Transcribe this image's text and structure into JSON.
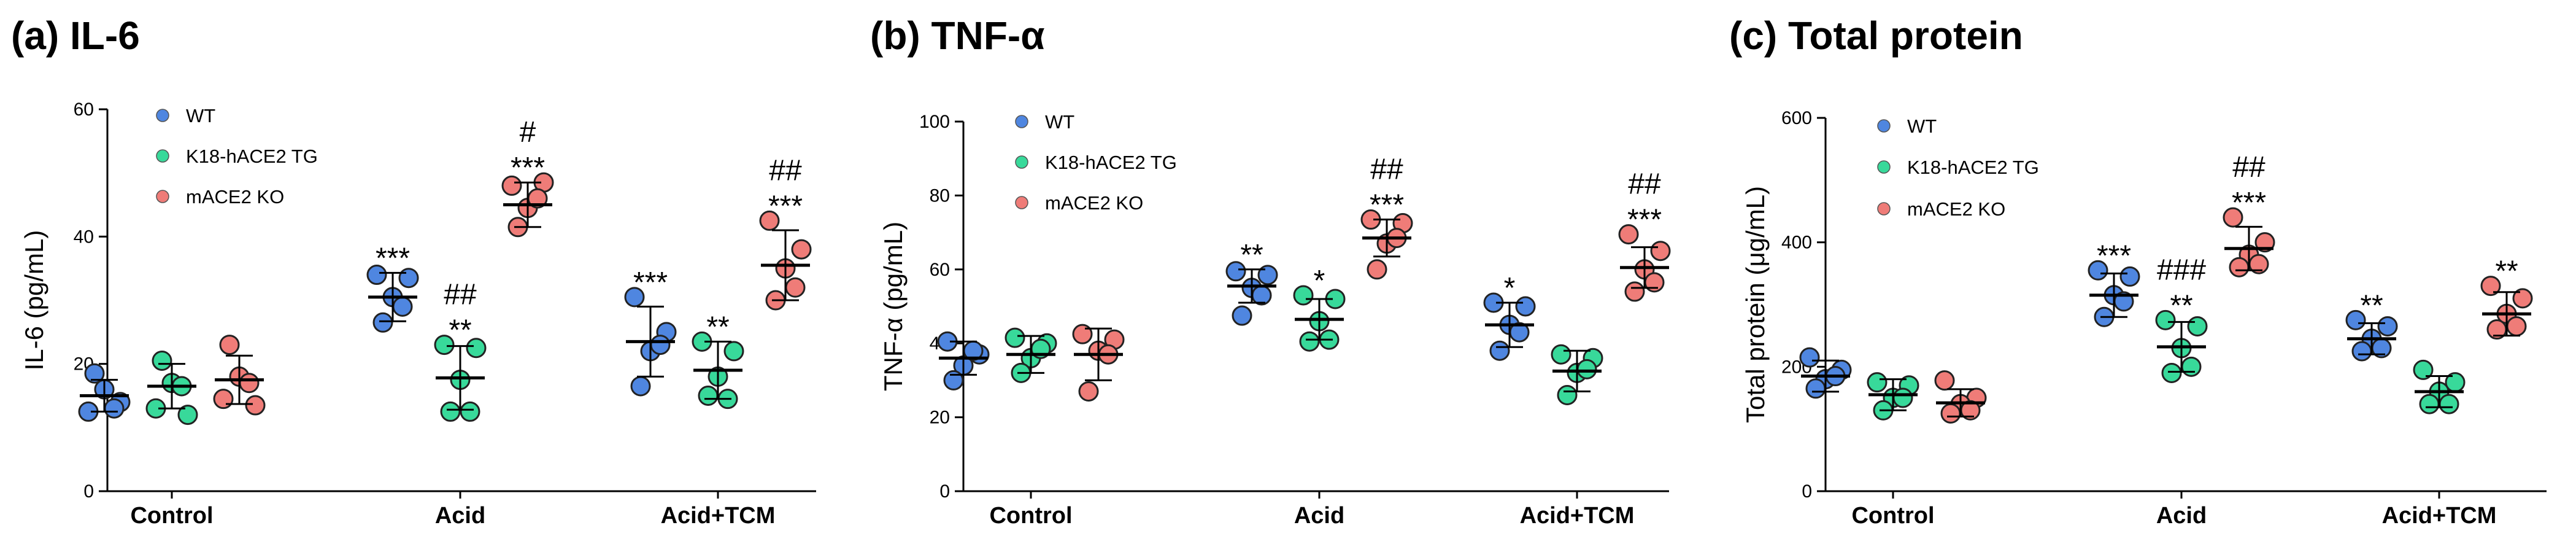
{
  "colors": {
    "WT": "#4f86e0",
    "K18-hACE2 TG": "#38d99a",
    "mACE2 KO": "#ef7c78"
  },
  "chart_data": [
    {
      "type": "scatter",
      "title": "(a) IL-6",
      "ylabel": "IL-6 (pg/mL)",
      "ylim": [
        0,
        60
      ],
      "yticks": [
        "0",
        "20",
        "40",
        "60"
      ],
      "categories": [
        "Control",
        "Acid",
        "Acid+TCM"
      ],
      "legend": [
        "WT",
        "K18-hACE2 TG",
        "mACE2 KO"
      ],
      "groups": [
        {
          "category": "Control",
          "series": "WT",
          "mean": 15.0,
          "sd": 2.5,
          "points": [
            12.5,
            14.0,
            16.0,
            18.5,
            13.0
          ],
          "sig": []
        },
        {
          "category": "Control",
          "series": "K18-hACE2 TG",
          "mean": 16.5,
          "sd": 3.5,
          "points": [
            13.0,
            12.0,
            17.0,
            20.5,
            16.5
          ],
          "sig": []
        },
        {
          "category": "Control",
          "series": "mACE2 KO",
          "mean": 17.5,
          "sd": 3.8,
          "points": [
            14.5,
            13.5,
            18.0,
            23.0,
            17.0
          ],
          "sig": []
        },
        {
          "category": "Acid",
          "series": "WT",
          "mean": 30.5,
          "sd": 3.8,
          "points": [
            34.0,
            33.5,
            30.5,
            26.5,
            29.0
          ],
          "sig": [
            "***"
          ]
        },
        {
          "category": "Acid",
          "series": "K18-hACE2 TG",
          "mean": 17.8,
          "sd": 5.0,
          "points": [
            23.0,
            22.5,
            17.5,
            12.5,
            12.5
          ],
          "sig": [
            "##",
            "**"
          ]
        },
        {
          "category": "Acid",
          "series": "mACE2 KO",
          "mean": 45.0,
          "sd": 3.5,
          "points": [
            48.0,
            48.5,
            44.5,
            41.5,
            46.0
          ],
          "sig": [
            "#",
            "***"
          ]
        },
        {
          "category": "Acid+TCM",
          "series": "WT",
          "mean": 23.5,
          "sd": 5.5,
          "points": [
            30.5,
            25.0,
            22.0,
            16.5,
            23.0
          ],
          "sig": [
            "***"
          ]
        },
        {
          "category": "Acid+TCM",
          "series": "K18-hACE2 TG",
          "mean": 19.0,
          "sd": 4.5,
          "points": [
            23.5,
            22.0,
            18.0,
            15.0,
            14.5
          ],
          "sig": [
            "**"
          ]
        },
        {
          "category": "Acid+TCM",
          "series": "mACE2 KO",
          "mean": 35.5,
          "sd": 5.5,
          "points": [
            42.5,
            38.0,
            35.0,
            30.0,
            32.0
          ],
          "sig": [
            "##",
            "***"
          ]
        }
      ]
    },
    {
      "type": "scatter",
      "title": "(b) TNF-α",
      "ylabel": "TNF-α (pg/mL)",
      "ylim": [
        0,
        100
      ],
      "yticks": [
        "0",
        "20",
        "40",
        "60",
        "80",
        "100"
      ],
      "categories": [
        "Control",
        "Acid",
        "Acid+TCM"
      ],
      "legend": [
        "WT",
        "K18-hACE2 TG",
        "mACE2 KO"
      ],
      "groups": [
        {
          "category": "Control",
          "series": "WT",
          "mean": 36.0,
          "sd": 4.5,
          "points": [
            40.5,
            37.0,
            34.0,
            30.0,
            38.0
          ],
          "sig": []
        },
        {
          "category": "Control",
          "series": "K18-hACE2 TG",
          "mean": 37.0,
          "sd": 5.0,
          "points": [
            41.5,
            40.0,
            36.0,
            32.0,
            38.5
          ],
          "sig": []
        },
        {
          "category": "Control",
          "series": "mACE2 KO",
          "mean": 37.0,
          "sd": 7.0,
          "points": [
            42.5,
            41.0,
            38.0,
            27.0,
            37.0
          ],
          "sig": []
        },
        {
          "category": "Acid",
          "series": "WT",
          "mean": 55.5,
          "sd": 4.5,
          "points": [
            59.5,
            58.5,
            55.0,
            47.5,
            53.0
          ],
          "sig": [
            "**"
          ]
        },
        {
          "category": "Acid",
          "series": "K18-hACE2 TG",
          "mean": 46.5,
          "sd": 5.5,
          "points": [
            53.0,
            52.0,
            46.0,
            40.5,
            41.0
          ],
          "sig": [
            "*"
          ]
        },
        {
          "category": "Acid",
          "series": "mACE2 KO",
          "mean": 68.5,
          "sd": 5.0,
          "points": [
            73.5,
            72.5,
            67.0,
            60.0,
            68.5
          ],
          "sig": [
            "##",
            "***"
          ]
        },
        {
          "category": "Acid+TCM",
          "series": "WT",
          "mean": 45.0,
          "sd": 6.0,
          "points": [
            51.0,
            50.0,
            45.0,
            38.0,
            43.0
          ],
          "sig": [
            "*"
          ]
        },
        {
          "category": "Acid+TCM",
          "series": "K18-hACE2 TG",
          "mean": 32.5,
          "sd": 5.5,
          "points": [
            37.0,
            36.0,
            32.0,
            26.0,
            33.0
          ],
          "sig": []
        },
        {
          "category": "Acid+TCM",
          "series": "mACE2 KO",
          "mean": 60.5,
          "sd": 5.5,
          "points": [
            69.5,
            65.0,
            60.0,
            54.0,
            56.5
          ],
          "sig": [
            "##",
            "***"
          ]
        }
      ]
    },
    {
      "type": "scatter",
      "title": "(c) Total protein",
      "ylabel": "Total protein  (μg/mL)",
      "ylim": [
        0,
        600
      ],
      "yticks": [
        "0",
        "200",
        "400",
        "600"
      ],
      "categories": [
        "Control",
        "Acid",
        "Acid+TCM"
      ],
      "legend": [
        "WT",
        "K18-hACE2 TG",
        "mACE2 KO"
      ],
      "groups": [
        {
          "category": "Control",
          "series": "WT",
          "mean": 185,
          "sd": 25,
          "points": [
            215,
            195,
            180,
            165,
            185
          ],
          "sig": []
        },
        {
          "category": "Control",
          "series": "K18-hACE2 TG",
          "mean": 155,
          "sd": 25,
          "points": [
            175,
            170,
            150,
            130,
            150
          ],
          "sig": []
        },
        {
          "category": "Control",
          "series": "mACE2 KO",
          "mean": 142,
          "sd": 22,
          "points": [
            178,
            150,
            140,
            125,
            130
          ],
          "sig": []
        },
        {
          "category": "Acid",
          "series": "WT",
          "mean": 315,
          "sd": 35,
          "points": [
            355,
            345,
            315,
            280,
            305
          ],
          "sig": [
            "***"
          ]
        },
        {
          "category": "Acid",
          "series": "K18-hACE2 TG",
          "mean": 232,
          "sd": 40,
          "points": [
            275,
            265,
            230,
            190,
            200
          ],
          "sig": [
            "###",
            "**"
          ]
        },
        {
          "category": "Acid",
          "series": "mACE2 KO",
          "mean": 390,
          "sd": 35,
          "points": [
            440,
            400,
            380,
            360,
            365
          ],
          "sig": [
            "##",
            "***"
          ]
        },
        {
          "category": "Acid+TCM",
          "series": "WT",
          "mean": 245,
          "sd": 25,
          "points": [
            275,
            265,
            245,
            225,
            230
          ],
          "sig": [
            "**"
          ]
        },
        {
          "category": "Acid+TCM",
          "series": "K18-hACE2 TG",
          "mean": 160,
          "sd": 25,
          "points": [
            195,
            175,
            160,
            140,
            140
          ],
          "sig": []
        },
        {
          "category": "Acid+TCM",
          "series": "mACE2 KO",
          "mean": 285,
          "sd": 35,
          "points": [
            330,
            310,
            285,
            260,
            265
          ],
          "sig": [
            "**"
          ]
        }
      ]
    }
  ]
}
